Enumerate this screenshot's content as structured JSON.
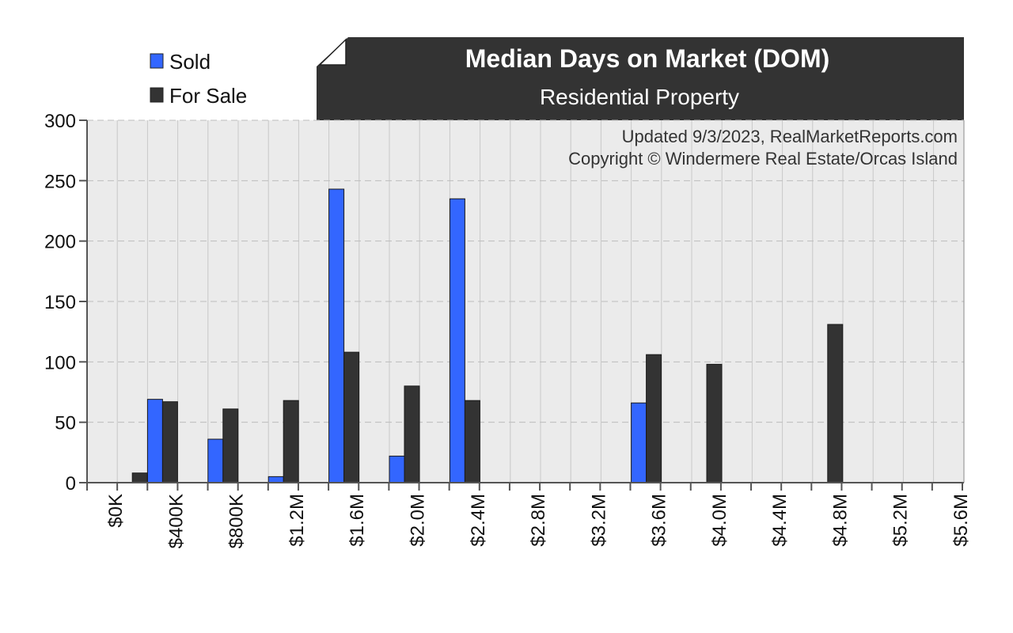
{
  "chart_data": {
    "type": "bar",
    "title": "Median Days on Market (DOM)",
    "subtitle": "Residential Property",
    "annotations": [
      "Updated 9/3/2023, RealMarketReports.com",
      "Copyright © Windermere Real Estate/Orcas Island"
    ],
    "xlabel": "",
    "ylabel": "",
    "ylim": [
      0,
      300
    ],
    "yticks": [
      0,
      50,
      100,
      150,
      200,
      250,
      300
    ],
    "x_tick_labels": [
      "$0K",
      "$400K",
      "$800K",
      "$1.2M",
      "$1.6M",
      "$2.0M",
      "$2.4M",
      "$2.8M",
      "$3.2M",
      "$3.6M",
      "$4.0M",
      "$4.4M",
      "$4.8M",
      "$5.2M",
      "$5.6M"
    ],
    "bin_count": 28,
    "grid": true,
    "legend_position": "top-left",
    "colors": {
      "Sold": "#3366ff",
      "For Sale": "#333333",
      "plot_bg": "#ebebeb",
      "header_bg": "#333333"
    },
    "series": [
      {
        "name": "Sold",
        "values": [
          0,
          0,
          69,
          0,
          36,
          0,
          5,
          0,
          243,
          0,
          22,
          0,
          235,
          0,
          0,
          0,
          0,
          0,
          66,
          0,
          0,
          0,
          0,
          0,
          0,
          0,
          0,
          0
        ]
      },
      {
        "name": "For Sale",
        "values": [
          0,
          8,
          67,
          0,
          61,
          0,
          68,
          0,
          108,
          0,
          80,
          0,
          68,
          0,
          0,
          0,
          0,
          0,
          106,
          0,
          98,
          0,
          0,
          0,
          131,
          0,
          0,
          0
        ]
      }
    ]
  }
}
